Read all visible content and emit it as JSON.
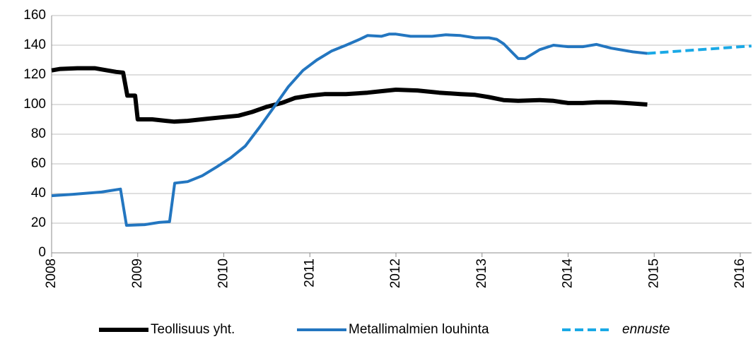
{
  "chart_data": {
    "type": "line",
    "xlim": [
      2008,
      2016.13
    ],
    "xticks": [
      2008,
      2009,
      2010,
      2011,
      2012,
      2013,
      2014,
      2015,
      2016
    ],
    "ylim": [
      0,
      160
    ],
    "yticks": [
      0,
      20,
      40,
      60,
      80,
      100,
      120,
      140,
      160
    ],
    "grid": true,
    "legend": "bottom",
    "series": [
      {
        "name": "Teollisuus yht.",
        "color": "#000000",
        "dashed": false,
        "x": [
          2008.0,
          2008.1,
          2008.3,
          2008.5,
          2008.6,
          2008.75,
          2008.83,
          2008.88,
          2008.97,
          2009.0,
          2009.17,
          2009.33,
          2009.42,
          2009.58,
          2009.83,
          2010.0,
          2010.17,
          2010.33,
          2010.5,
          2010.67,
          2010.83,
          2011.0,
          2011.17,
          2011.42,
          2011.67,
          2011.83,
          2012.0,
          2012.25,
          2012.5,
          2012.75,
          2012.92,
          2013.08,
          2013.25,
          2013.42,
          2013.67,
          2013.83,
          2014.0,
          2014.17,
          2014.33,
          2014.5,
          2014.67,
          2014.92
        ],
        "values": [
          123,
          124,
          124.5,
          124.5,
          123.5,
          122,
          121.5,
          106,
          106,
          90,
          90,
          89,
          88.5,
          89,
          90.5,
          91.5,
          92.5,
          95,
          98.5,
          101,
          104.5,
          106,
          107,
          107,
          108,
          109,
          110,
          109.5,
          108,
          107,
          106.5,
          105,
          103,
          102.5,
          103,
          102.5,
          101,
          101,
          101.5,
          101.5,
          101,
          100
        ]
      },
      {
        "name": "Metallimalmien louhinta",
        "color": "#2376c0",
        "dashed": false,
        "x": [
          2008.0,
          2008.25,
          2008.58,
          2008.8,
          2008.87,
          2009.08,
          2009.25,
          2009.37,
          2009.43,
          2009.58,
          2009.75,
          2009.92,
          2010.08,
          2010.25,
          2010.42,
          2010.58,
          2010.75,
          2010.92,
          2011.08,
          2011.25,
          2011.42,
          2011.58,
          2011.67,
          2011.83,
          2011.92,
          2012.0,
          2012.17,
          2012.42,
          2012.58,
          2012.75,
          2012.92,
          2013.08,
          2013.17,
          2013.25,
          2013.42,
          2013.5,
          2013.67,
          2013.83,
          2014.0,
          2014.17,
          2014.33,
          2014.5,
          2014.75,
          2014.92
        ],
        "values": [
          38.5,
          39.5,
          41,
          43,
          18.5,
          19,
          20.5,
          21,
          47,
          48,
          52,
          58,
          64,
          72,
          85,
          98,
          112,
          123,
          130,
          136,
          140,
          144,
          146.5,
          146,
          147.5,
          147.5,
          146,
          146,
          147,
          146.5,
          145,
          145,
          144,
          141,
          131,
          131,
          137,
          140,
          139,
          139,
          140.5,
          138,
          135.5,
          134.5
        ]
      },
      {
        "name": "ennuste",
        "color": "#1aa9e6",
        "dashed": true,
        "x": [
          2014.92,
          2016.13
        ],
        "values": [
          134.5,
          139.5
        ]
      }
    ]
  }
}
